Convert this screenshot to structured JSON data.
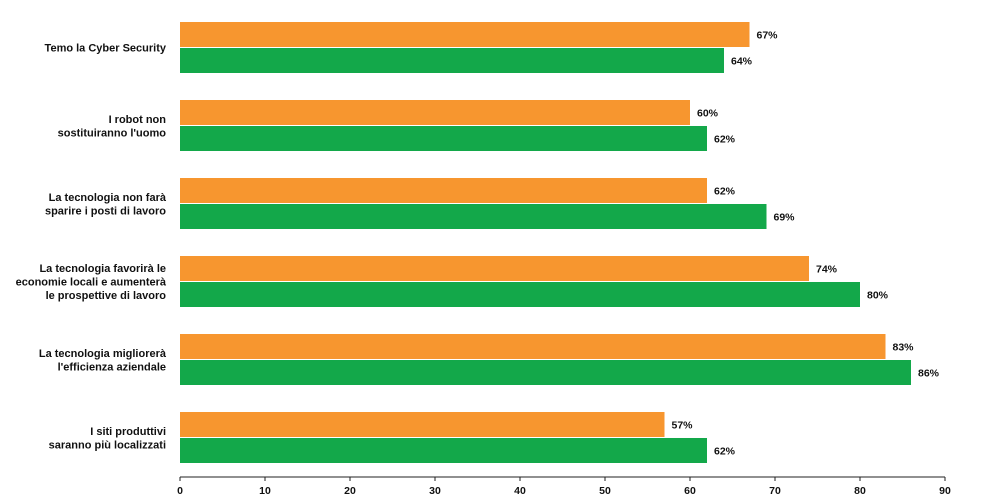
{
  "chart_data": {
    "type": "bar",
    "orientation": "horizontal",
    "categories": [
      [
        "Temo la Cyber Security"
      ],
      [
        "I robot non",
        "sostituiranno l'uomo"
      ],
      [
        "La tecnologia non farà",
        "sparire i posti di lavoro"
      ],
      [
        "La tecnologia favorirà le",
        "economie locali e aumenterà",
        "le prospettive di lavoro"
      ],
      [
        "La tecnologia migliorerà",
        "l'efficienza aziendale"
      ],
      [
        "I siti produttivi",
        "saranno più localizzati"
      ]
    ],
    "series": [
      {
        "values": [
          67,
          60,
          62,
          74,
          83,
          57
        ],
        "color": "#f7962f"
      },
      {
        "values": [
          64,
          62,
          69,
          80,
          86,
          62
        ],
        "color": "#13a84a"
      }
    ],
    "value_suffix": "%",
    "xlim": [
      0,
      90
    ],
    "xticks": [
      0,
      10,
      20,
      30,
      40,
      50,
      60,
      70,
      80,
      90
    ],
    "grid": false,
    "legend": "none"
  }
}
